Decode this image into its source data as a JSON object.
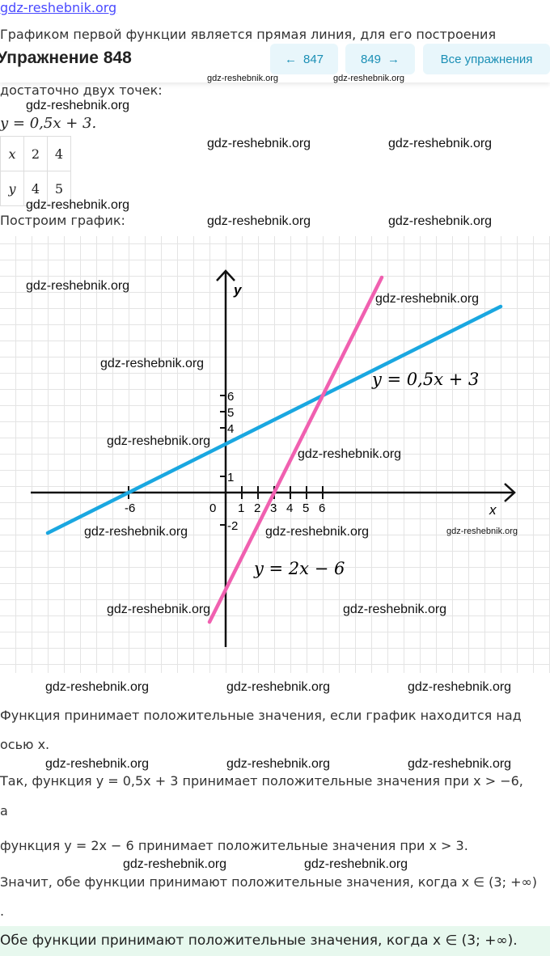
{
  "top_watermark": "gdz-reshebnik.org",
  "header": {
    "title": "Упражнение 848",
    "prev": "847",
    "next": "849",
    "all": "Все упражнения"
  },
  "intro": "Графиком первой функции является прямая линия, для его построения",
  "intro_cut": "достаточно двух точек:",
  "equation1": "y = 0,5x + 3.",
  "table": {
    "rows": [
      [
        "x",
        "2",
        "4"
      ],
      [
        "y",
        "4",
        "5"
      ]
    ]
  },
  "build": "Построим график:",
  "chart_data": {
    "type": "line",
    "xlabel": "x",
    "ylabel": "y",
    "x_ticks": [
      "-6",
      "0",
      "1",
      "2",
      "3",
      "4",
      "5",
      "6"
    ],
    "y_ticks": [
      "6",
      "5",
      "4",
      "1",
      "-2"
    ],
    "series": [
      {
        "name": "y = 0,5x + 3",
        "slope": 0.5,
        "intercept": 3,
        "color": "#1aa7e0",
        "x_range": [
          -11,
          17
        ]
      },
      {
        "name": "y = 2x − 6",
        "slope": 2,
        "intercept": -6,
        "color": "#f060b0",
        "x_range": [
          -1,
          9.65
        ]
      }
    ]
  },
  "p1": "Функция принимает положительные значения, если график находится над",
  "p1b": "осью x.",
  "p2": "Так, функция y = 0,5x + 3 принимает положительные значения при x > −6,",
  "p2b": "а",
  "p3": "функция y = 2x − 6 принимает положительные значения при x > 3.",
  "p4": "Значит, обе функции принимают положительные значения, когда x ∈ (3; +∞)",
  "p4b": ".",
  "answer": "Обе функции принимают положительные значения, когда x ∈ (3; +∞).",
  "watermark": "gdz-reshebnik.org"
}
